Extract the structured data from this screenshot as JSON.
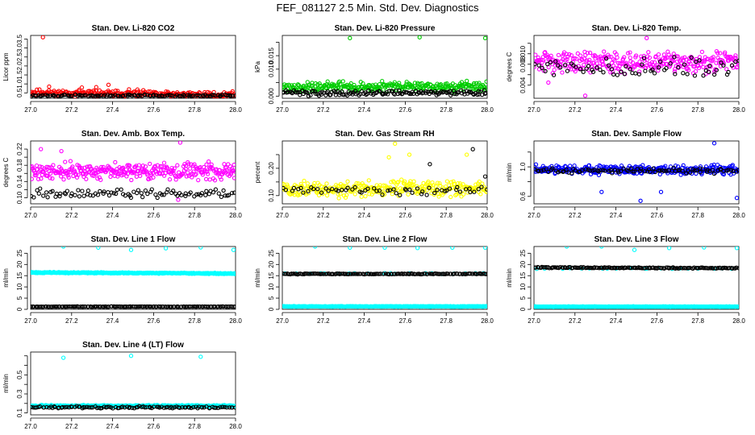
{
  "page_title": "FEF_081127  2.5 Min. Std. Dev. Diagnostics",
  "palette": {
    "red": "#ff0000",
    "green": "#00cc00",
    "magenta": "#ff00ff",
    "yellow": "#ffff00",
    "blue": "#0000ff",
    "cyan": "#00ffff",
    "black": "#000000"
  },
  "chart_data": [
    {
      "type": "scatter",
      "title": "Stan. Dev. Li-820 CO2",
      "ylabel": "Licor ppm",
      "xlim": [
        27.0,
        28.0
      ],
      "ylim": [
        0.2,
        3.7
      ],
      "xticks": [
        "27.0",
        "27.2",
        "27.4",
        "27.6",
        "27.8",
        "28.0"
      ],
      "yticks": [
        0.5,
        1.0,
        1.5,
        2.0,
        2.5,
        3.0,
        3.5
      ],
      "ytick_labels": [
        "0.5",
        "1.0",
        "1.5",
        "2.0",
        "2.5",
        "3.0",
        "3.5"
      ],
      "series": [
        {
          "color": "red",
          "generator": {
            "base": 0.45,
            "spread": 0.25,
            "decay": 0.6,
            "seed": 11,
            "n": 240
          },
          "points": [
            [
              27.06,
              3.6
            ],
            [
              27.09,
              0.85
            ],
            [
              27.25,
              0.8
            ],
            [
              27.32,
              0.82
            ],
            [
              27.38,
              0.95
            ],
            [
              27.48,
              0.7
            ],
            [
              27.55,
              0.65
            ]
          ]
        },
        {
          "color": "black",
          "generator": {
            "base": 0.35,
            "spread": 0.08,
            "decay": 0,
            "seed": 12,
            "n": 120
          }
        }
      ]
    },
    {
      "type": "scatter",
      "title": "Stan. Dev. Li-820 Pressure",
      "ylabel": "kPa",
      "xlim": [
        27.0,
        28.0
      ],
      "ylim": [
        -0.0008,
        0.0225
      ],
      "xticks": [
        "27.0",
        "27.2",
        "27.4",
        "27.6",
        "27.8",
        "28.0"
      ],
      "yticks": [
        0.0,
        0.005,
        0.01,
        0.015,
        0.02
      ],
      "ytick_labels": [
        "0.000",
        "",
        "0.010",
        "0.015",
        ""
      ],
      "series": [
        {
          "color": "green",
          "generator": {
            "base": 0.0035,
            "spread": 0.0025,
            "decay": 0,
            "seed": 21,
            "n": 300
          },
          "points": [
            [
              27.33,
              0.0215
            ],
            [
              27.67,
              0.0218
            ],
            [
              27.99,
              0.0215
            ]
          ]
        },
        {
          "color": "black",
          "generator": {
            "base": 0.0012,
            "spread": 0.0015,
            "decay": 0,
            "seed": 22,
            "n": 150
          }
        }
      ]
    },
    {
      "type": "scatter",
      "title": "Stan. Dev. Li-820 Temp.",
      "ylabel": "degrees C",
      "xlim": [
        27.0,
        28.0
      ],
      "ylim": [
        0.0015,
        0.0135
      ],
      "xticks": [
        "27.0",
        "27.2",
        "27.4",
        "27.6",
        "27.8",
        "28.0"
      ],
      "yticks": [
        0.004,
        0.006,
        0.008,
        0.01,
        0.012
      ],
      "ytick_labels": [
        "0.004",
        "",
        "0.008",
        "0.010",
        ""
      ],
      "series": [
        {
          "color": "magenta",
          "generator": {
            "base": 0.0085,
            "spread": 0.0028,
            "decay": 0,
            "seed": 31,
            "n": 320
          },
          "points": [
            [
              27.25,
              0.002
            ],
            [
              27.55,
              0.013
            ],
            [
              27.07,
              0.0045
            ]
          ]
        },
        {
          "color": "black",
          "generator": {
            "base": 0.0075,
            "spread": 0.003,
            "decay": 0,
            "seed": 32,
            "n": 70
          }
        }
      ]
    },
    {
      "type": "scatter",
      "title": "Stan. Dev. Amb. Box Temp.",
      "ylabel": "degrees C",
      "xlim": [
        27.0,
        28.0
      ],
      "ylim": [
        0.085,
        0.24
      ],
      "xticks": [
        "27.0",
        "27.2",
        "27.4",
        "27.6",
        "27.8",
        "28.0"
      ],
      "yticks": [
        0.1,
        0.12,
        0.14,
        0.16,
        0.18,
        0.2,
        0.22
      ],
      "ytick_labels": [
        "0.10",
        "",
        "0.14",
        "",
        "0.18",
        "",
        "0.22"
      ],
      "series": [
        {
          "color": "magenta",
          "generator": {
            "base": 0.165,
            "spread": 0.028,
            "decay": 0,
            "seed": 41,
            "n": 330
          },
          "points": [
            [
              27.73,
              0.236
            ],
            [
              27.05,
              0.22
            ],
            [
              27.15,
              0.215
            ],
            [
              27.72,
              0.095
            ]
          ]
        },
        {
          "color": "black",
          "generator": {
            "base": 0.11,
            "spread": 0.015,
            "decay": 0,
            "seed": 42,
            "n": 90
          }
        }
      ]
    },
    {
      "type": "scatter",
      "title": "Stan. Dev. Gas Stream RH",
      "ylabel": "percent",
      "xlim": [
        27.0,
        28.0
      ],
      "ylim": [
        0.07,
        0.3
      ],
      "xticks": [
        "27.0",
        "27.2",
        "27.4",
        "27.6",
        "27.8",
        "28.0"
      ],
      "yticks": [
        0.1,
        0.15,
        0.2,
        0.25
      ],
      "ytick_labels": [
        "0.10",
        "",
        "0.20",
        ""
      ],
      "series": [
        {
          "color": "yellow",
          "generator": {
            "base": 0.125,
            "spread": 0.04,
            "decay": 0,
            "seed": 51,
            "n": 300
          },
          "points": [
            [
              27.55,
              0.29
            ],
            [
              27.52,
              0.24
            ],
            [
              27.62,
              0.25
            ],
            [
              27.9,
              0.25
            ]
          ]
        },
        {
          "color": "black",
          "generator": {
            "base": 0.12,
            "spread": 0.022,
            "decay": 0,
            "seed": 52,
            "n": 60
          },
          "points": [
            [
              27.72,
              0.215
            ],
            [
              27.93,
              0.27
            ],
            [
              27.99,
              0.17
            ]
          ]
        }
      ]
    },
    {
      "type": "scatter",
      "title": "Stan. Dev. Sample Flow",
      "ylabel": "ml/min",
      "xlim": [
        27.0,
        28.0
      ],
      "ylim": [
        0.5,
        1.35
      ],
      "xticks": [
        "27.0",
        "27.2",
        "27.4",
        "27.6",
        "27.8",
        "28.0"
      ],
      "yticks": [
        0.6,
        0.8,
        1.0,
        1.2
      ],
      "ytick_labels": [
        "0.6",
        "",
        "1.0",
        ""
      ],
      "series": [
        {
          "color": "blue",
          "generator": {
            "base": 0.96,
            "spread": 0.085,
            "decay": -0.08,
            "seed": 61,
            "n": 320
          },
          "points": [
            [
              27.88,
              1.32
            ],
            [
              27.33,
              0.66
            ],
            [
              27.62,
              0.66
            ],
            [
              27.99,
              0.58
            ],
            [
              27.52,
              0.54
            ]
          ]
        },
        {
          "color": "black",
          "generator": {
            "base": 0.95,
            "spread": 0.05,
            "decay": -0.05,
            "seed": 62,
            "n": 90
          }
        }
      ]
    },
    {
      "type": "scatter",
      "title": "Stan. Dev. Line 1 Flow",
      "ylabel": "ml/min",
      "xlim": [
        27.0,
        28.0
      ],
      "ylim": [
        0,
        28
      ],
      "xticks": [
        "27.0",
        "27.2",
        "27.4",
        "27.6",
        "27.8",
        "28.0"
      ],
      "yticks": [
        0,
        5,
        10,
        15,
        20,
        25
      ],
      "ytick_labels": [
        "0",
        "5",
        "10",
        "15",
        "20",
        "25"
      ],
      "series": [
        {
          "color": "cyan",
          "generator": {
            "base": 16.2,
            "spread": 0.35,
            "decay": 1.2,
            "seed": 71,
            "n": 360
          },
          "points": [
            [
              27.16,
              28
            ],
            [
              27.33,
              27.5
            ],
            [
              27.49,
              26.5
            ],
            [
              27.66,
              27.2
            ],
            [
              27.83,
              27.6
            ],
            [
              27.99,
              26.5
            ]
          ]
        },
        {
          "color": "black",
          "generator": {
            "base": 1.2,
            "spread": 0.15,
            "decay": 0,
            "seed": 72,
            "n": 150
          }
        }
      ]
    },
    {
      "type": "scatter",
      "title": "Stan. Dev. Line 2 Flow",
      "ylabel": "ml/min",
      "xlim": [
        27.0,
        28.0
      ],
      "ylim": [
        0,
        28
      ],
      "xticks": [
        "27.0",
        "27.2",
        "27.4",
        "27.6",
        "27.8",
        "28.0"
      ],
      "yticks": [
        0,
        5,
        10,
        15,
        20,
        25
      ],
      "ytick_labels": [
        "0",
        "5",
        "10",
        "15",
        "20",
        "25"
      ],
      "series": [
        {
          "color": "cyan",
          "generator": {
            "base": 16.0,
            "spread": 0.3,
            "decay": 0,
            "seed": 81,
            "n": 20
          },
          "points": [
            [
              27.16,
              28
            ],
            [
              27.33,
              27.5
            ],
            [
              27.5,
              27.5
            ],
            [
              27.66,
              27.3
            ],
            [
              27.83,
              27.5
            ],
            [
              27.99,
              27.5
            ]
          ]
        },
        {
          "color": "cyan",
          "generator": {
            "base": 1.3,
            "spread": 0.2,
            "decay": 0,
            "seed": 82,
            "n": 360
          }
        },
        {
          "color": "black",
          "generator": {
            "base": 15.8,
            "spread": 0.25,
            "decay": 0,
            "seed": 83,
            "n": 150
          }
        }
      ]
    },
    {
      "type": "scatter",
      "title": "Stan. Dev. Line 3 Flow",
      "ylabel": "ml/min",
      "xlim": [
        27.0,
        28.0
      ],
      "ylim": [
        0,
        28
      ],
      "xticks": [
        "27.0",
        "27.2",
        "27.4",
        "27.6",
        "27.8",
        "28.0"
      ],
      "yticks": [
        0,
        5,
        10,
        15,
        20,
        25
      ],
      "ytick_labels": [
        "0",
        "5",
        "10",
        "15",
        "20",
        "25"
      ],
      "series": [
        {
          "color": "cyan",
          "generator": {
            "base": 18.2,
            "spread": 0.3,
            "decay": 0,
            "seed": 91,
            "n": 20
          },
          "points": [
            [
              27.16,
              28
            ],
            [
              27.33,
              28
            ],
            [
              27.49,
              26.5
            ],
            [
              27.66,
              27.3
            ],
            [
              27.83,
              27.6
            ],
            [
              27.99,
              27.3
            ]
          ]
        },
        {
          "color": "cyan",
          "generator": {
            "base": 1.2,
            "spread": 0.2,
            "decay": 0,
            "seed": 92,
            "n": 360
          }
        },
        {
          "color": "black",
          "generator": {
            "base": 18.5,
            "spread": 0.35,
            "decay": 0.8,
            "seed": 93,
            "n": 150
          }
        }
      ]
    },
    {
      "type": "scatter",
      "title": "Stan. Dev. Line 4 (LT) Flow",
      "ylabel": "ml/min",
      "xlim": [
        27.0,
        28.0
      ],
      "ylim": [
        0.08,
        0.74
      ],
      "xticks": [
        "27.0",
        "27.2",
        "27.4",
        "27.6",
        "27.8",
        "28.0"
      ],
      "yticks": [
        0.1,
        0.2,
        0.3,
        0.4,
        0.5,
        0.6,
        0.7
      ],
      "ytick_labels": [
        "0.1",
        "",
        "0.3",
        "",
        "0.5",
        "",
        ""
      ],
      "series": [
        {
          "color": "cyan",
          "generator": {
            "base": 0.175,
            "spread": 0.012,
            "decay": 0,
            "seed": 101,
            "n": 320
          },
          "points": [
            [
              27.16,
              0.68
            ],
            [
              27.49,
              0.7
            ],
            [
              27.83,
              0.69
            ]
          ]
        },
        {
          "color": "black",
          "generator": {
            "base": 0.16,
            "spread": 0.015,
            "decay": 0,
            "seed": 102,
            "n": 110
          }
        }
      ]
    }
  ]
}
